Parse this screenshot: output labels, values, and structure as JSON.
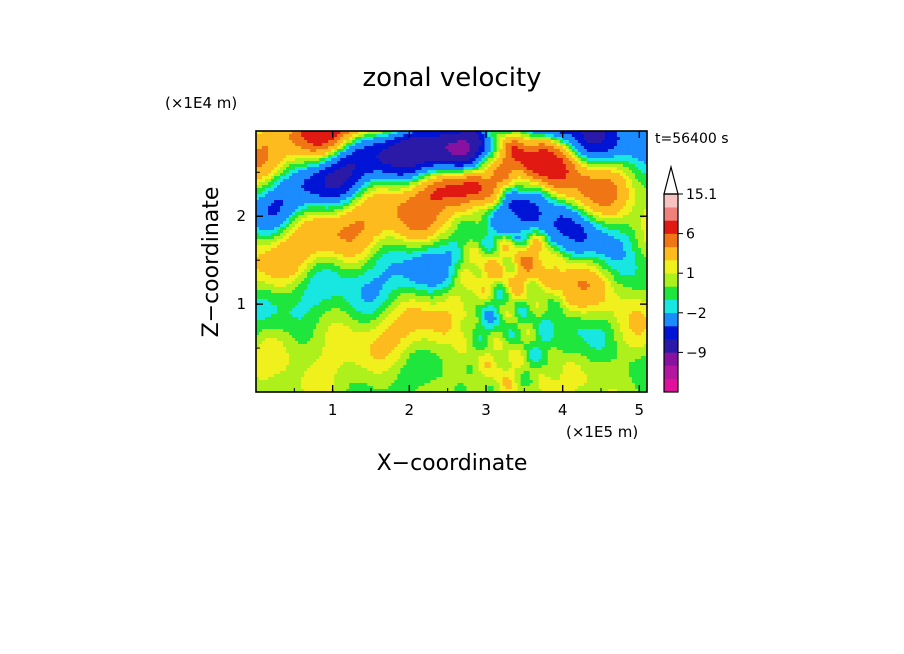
{
  "chart_data": {
    "type": "heatmap",
    "title": "zonal velocity",
    "time_label": "t=56400 s",
    "xlabel": "X−coordinate",
    "ylabel": "Z−coordinate",
    "x_unit": "(×1E5 m)",
    "y_unit": "(×1E4 m)",
    "x_range": [
      0,
      5.1
    ],
    "y_range": [
      0,
      2.97
    ],
    "x_ticks": [
      1,
      2,
      3,
      4,
      5
    ],
    "x_tick_labels": [
      "1",
      "2",
      "3",
      "4",
      "5"
    ],
    "y_ticks": [
      1,
      2
    ],
    "y_tick_labels": [
      "1",
      "2"
    ],
    "colorbar": {
      "labels": [
        {
          "value": 15.1,
          "text": "15.1"
        },
        {
          "value": 6,
          "text": "6"
        },
        {
          "value": 1,
          "text": "1"
        },
        {
          "value": -2,
          "text": "−2"
        },
        {
          "value": -9,
          "text": "−9"
        }
      ],
      "levels": [
        -15,
        -12,
        -9,
        -6,
        -4,
        -2,
        -1,
        0,
        1,
        2,
        4,
        6,
        9,
        12,
        15.1
      ],
      "colors": [
        "#e0119b",
        "#b5169f",
        "#88129f",
        "#2b1aa8",
        "#0014d6",
        "#1a8cff",
        "#17e7e0",
        "#1ee63c",
        "#aef01c",
        "#f0f01d",
        "#fdbb1d",
        "#f07515",
        "#e01a13",
        "#f0807a",
        "#f7c2c0"
      ],
      "extend": "max"
    }
  }
}
